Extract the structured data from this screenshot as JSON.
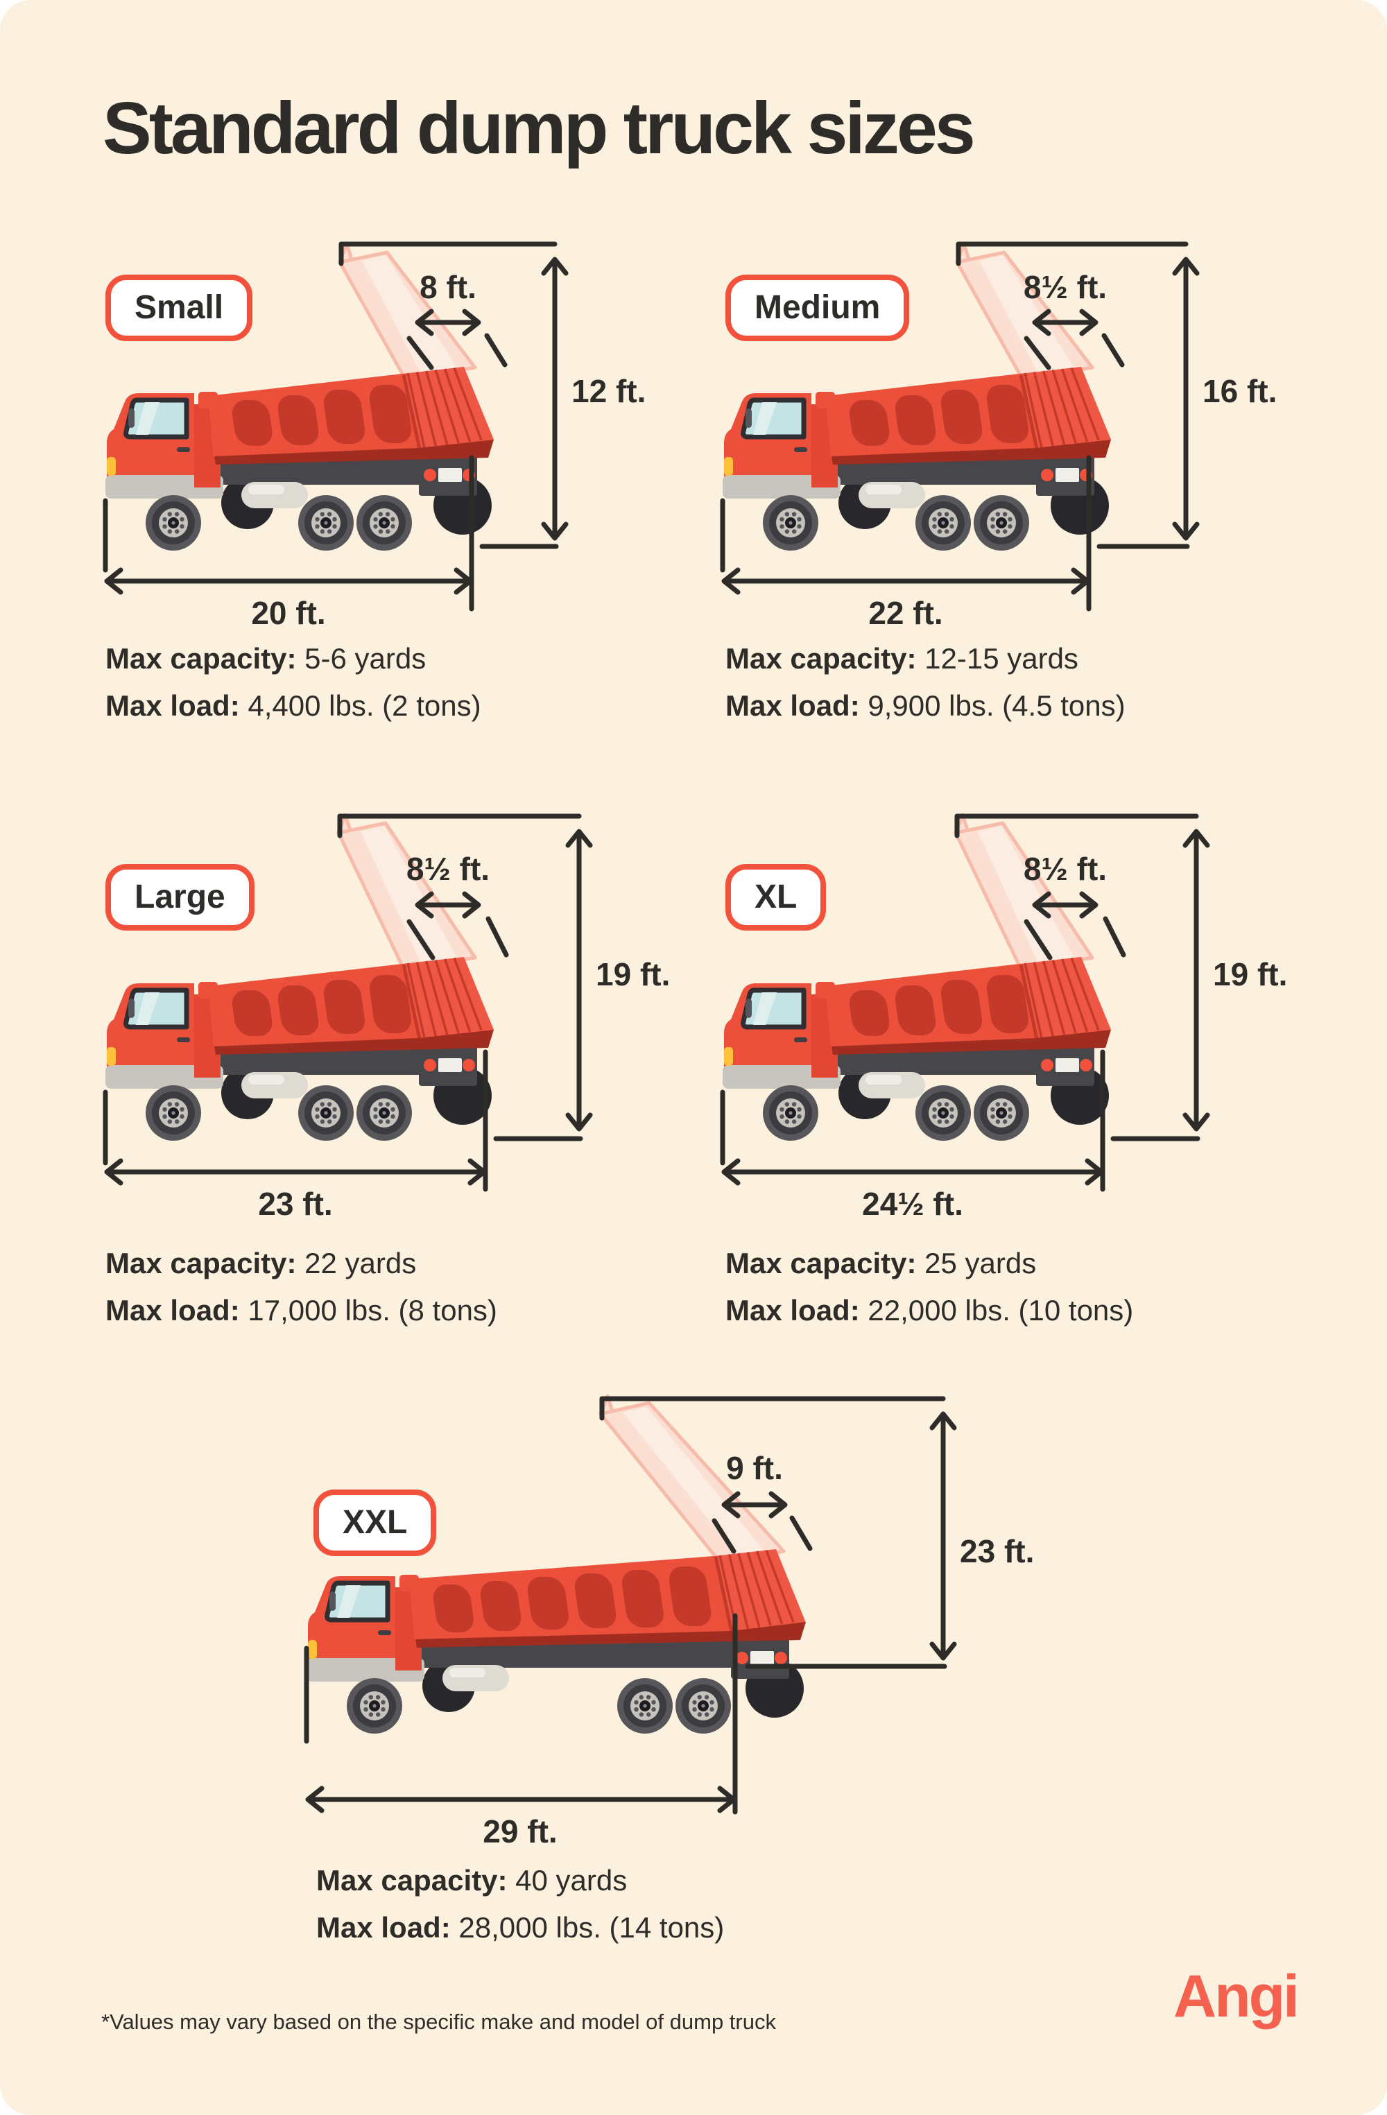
{
  "page": {
    "title": "Standard dump truck sizes",
    "footnote": "*Values may vary based on the specific make and model of dump truck",
    "brand": "Angi",
    "background_color": "#FCF0DE",
    "accent_color": "#F2523C",
    "ink_color": "#2E2C29",
    "truck_red": "#EC4F3A"
  },
  "trucks": [
    {
      "label": "Small",
      "dims": {
        "width": "8 ft.",
        "height": "12 ft.",
        "length": "20 ft."
      },
      "max_capacity_label": "Max capacity:",
      "max_capacity": "5-6 yards",
      "max_load_label": "Max load:",
      "max_load": "4,400 lbs. (2 tons)"
    },
    {
      "label": "Medium",
      "dims": {
        "width": "8½ ft.",
        "height": "16 ft.",
        "length": "22 ft."
      },
      "max_capacity_label": "Max capacity:",
      "max_capacity": "12-15 yards",
      "max_load_label": "Max load:",
      "max_load": "9,900 lbs. (4.5 tons)"
    },
    {
      "label": "Large",
      "dims": {
        "width": "8½ ft.",
        "height": "19 ft.",
        "length": "23 ft."
      },
      "max_capacity_label": "Max capacity:",
      "max_capacity": "22 yards",
      "max_load_label": "Max load:",
      "max_load": "17,000 lbs. (8 tons)"
    },
    {
      "label": "XL",
      "dims": {
        "width": "8½ ft.",
        "height": "19 ft.",
        "length": "24½ ft."
      },
      "max_capacity_label": "Max capacity:",
      "max_capacity": "25 yards",
      "max_load_label": "Max load:",
      "max_load": "22,000 lbs. (10 tons)"
    },
    {
      "label": "XXL",
      "dims": {
        "width": "9 ft.",
        "height": "23 ft.",
        "length": "29 ft."
      },
      "max_capacity_label": "Max capacity:",
      "max_capacity": "40 yards",
      "max_load_label": "Max load:",
      "max_load": "28,000 lbs. (14 tons)"
    }
  ]
}
